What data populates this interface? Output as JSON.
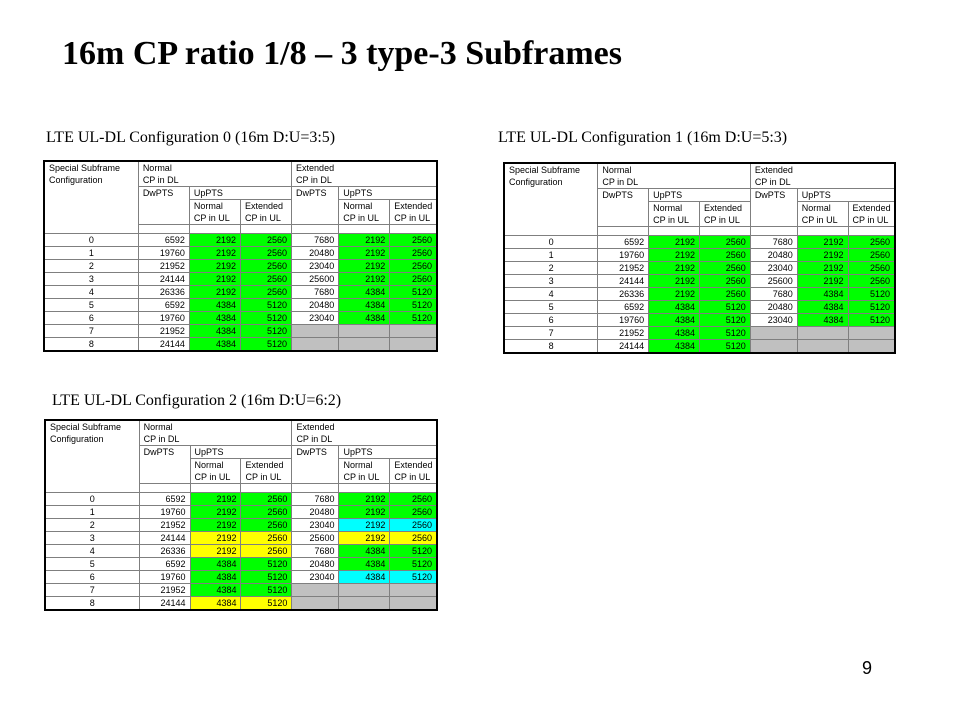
{
  "slide": {
    "title": "16m CP ratio 1/8 – 3 type-3 Subframes",
    "page_number": "9"
  },
  "headers": {
    "special_subframe": "Special Subframe",
    "configuration": "Configuration",
    "normal": "Normal",
    "extended": "Extended",
    "cp_in_dl": "CP in DL",
    "dwpts": "DwPTS",
    "uppts": "UpPTS",
    "normal_sub": "Normal",
    "extended_sub": "Extended",
    "cp_in_ul": "CP in UL"
  },
  "colors": {
    "green": "#00ff00",
    "yellow": "#ffff00",
    "cyan": "#00ffff",
    "gray": "#c0c0c0"
  },
  "tables": [
    {
      "title": "LTE UL-DL Configuration 0 (16m D:U=3:5)",
      "rows": [
        {
          "cells": [
            "0",
            "6592",
            "2192",
            "2560",
            "7680",
            "2192",
            "2560"
          ],
          "colors": [
            "",
            "",
            "green",
            "green",
            "",
            "green",
            "green"
          ]
        },
        {
          "cells": [
            "1",
            "19760",
            "2192",
            "2560",
            "20480",
            "2192",
            "2560"
          ],
          "colors": [
            "",
            "",
            "green",
            "green",
            "",
            "green",
            "green"
          ]
        },
        {
          "cells": [
            "2",
            "21952",
            "2192",
            "2560",
            "23040",
            "2192",
            "2560"
          ],
          "colors": [
            "",
            "",
            "green",
            "green",
            "",
            "green",
            "green"
          ]
        },
        {
          "cells": [
            "3",
            "24144",
            "2192",
            "2560",
            "25600",
            "2192",
            "2560"
          ],
          "colors": [
            "",
            "",
            "green",
            "green",
            "",
            "green",
            "green"
          ]
        },
        {
          "cells": [
            "4",
            "26336",
            "2192",
            "2560",
            "7680",
            "4384",
            "5120"
          ],
          "colors": [
            "",
            "",
            "green",
            "green",
            "",
            "green",
            "green"
          ]
        },
        {
          "cells": [
            "5",
            "6592",
            "4384",
            "5120",
            "20480",
            "4384",
            "5120"
          ],
          "colors": [
            "",
            "",
            "green",
            "green",
            "",
            "green",
            "green"
          ]
        },
        {
          "cells": [
            "6",
            "19760",
            "4384",
            "5120",
            "23040",
            "4384",
            "5120"
          ],
          "colors": [
            "",
            "",
            "green",
            "green",
            "",
            "green",
            "green"
          ]
        },
        {
          "cells": [
            "7",
            "21952",
            "4384",
            "5120",
            "",
            "",
            ""
          ],
          "colors": [
            "",
            "",
            "green",
            "green",
            "gray",
            "gray",
            "gray"
          ]
        },
        {
          "cells": [
            "8",
            "24144",
            "4384",
            "5120",
            "",
            "",
            ""
          ],
          "colors": [
            "",
            "",
            "green",
            "green",
            "gray",
            "gray",
            "gray"
          ]
        }
      ]
    },
    {
      "title": "LTE UL-DL Configuration 1 (16m D:U=5:3)",
      "rows": [
        {
          "cells": [
            "0",
            "6592",
            "2192",
            "2560",
            "7680",
            "2192",
            "2560"
          ],
          "colors": [
            "",
            "",
            "green",
            "green",
            "",
            "green",
            "green"
          ]
        },
        {
          "cells": [
            "1",
            "19760",
            "2192",
            "2560",
            "20480",
            "2192",
            "2560"
          ],
          "colors": [
            "",
            "",
            "green",
            "green",
            "",
            "green",
            "green"
          ]
        },
        {
          "cells": [
            "2",
            "21952",
            "2192",
            "2560",
            "23040",
            "2192",
            "2560"
          ],
          "colors": [
            "",
            "",
            "green",
            "green",
            "",
            "green",
            "green"
          ]
        },
        {
          "cells": [
            "3",
            "24144",
            "2192",
            "2560",
            "25600",
            "2192",
            "2560"
          ],
          "colors": [
            "",
            "",
            "green",
            "green",
            "",
            "green",
            "green"
          ]
        },
        {
          "cells": [
            "4",
            "26336",
            "2192",
            "2560",
            "7680",
            "4384",
            "5120"
          ],
          "colors": [
            "",
            "",
            "green",
            "green",
            "",
            "green",
            "green"
          ]
        },
        {
          "cells": [
            "5",
            "6592",
            "4384",
            "5120",
            "20480",
            "4384",
            "5120"
          ],
          "colors": [
            "",
            "",
            "green",
            "green",
            "",
            "green",
            "green"
          ]
        },
        {
          "cells": [
            "6",
            "19760",
            "4384",
            "5120",
            "23040",
            "4384",
            "5120"
          ],
          "colors": [
            "",
            "",
            "green",
            "green",
            "",
            "green",
            "green"
          ]
        },
        {
          "cells": [
            "7",
            "21952",
            "4384",
            "5120",
            "",
            "",
            ""
          ],
          "colors": [
            "",
            "",
            "green",
            "green",
            "gray",
            "gray",
            "gray"
          ]
        },
        {
          "cells": [
            "8",
            "24144",
            "4384",
            "5120",
            "",
            "",
            ""
          ],
          "colors": [
            "",
            "",
            "green",
            "green",
            "gray",
            "gray",
            "gray"
          ]
        }
      ]
    },
    {
      "title": "LTE UL-DL Configuration 2 (16m D:U=6:2)",
      "rows": [
        {
          "cells": [
            "0",
            "6592",
            "2192",
            "2560",
            "7680",
            "2192",
            "2560"
          ],
          "colors": [
            "",
            "",
            "green",
            "green",
            "",
            "green",
            "green"
          ]
        },
        {
          "cells": [
            "1",
            "19760",
            "2192",
            "2560",
            "20480",
            "2192",
            "2560"
          ],
          "colors": [
            "",
            "",
            "green",
            "green",
            "",
            "green",
            "green"
          ]
        },
        {
          "cells": [
            "2",
            "21952",
            "2192",
            "2560",
            "23040",
            "2192",
            "2560"
          ],
          "colors": [
            "",
            "",
            "green",
            "green",
            "",
            "cyan",
            "cyan"
          ]
        },
        {
          "cells": [
            "3",
            "24144",
            "2192",
            "2560",
            "25600",
            "2192",
            "2560"
          ],
          "colors": [
            "",
            "",
            "yellow",
            "yellow",
            "",
            "yellow",
            "yellow"
          ]
        },
        {
          "cells": [
            "4",
            "26336",
            "2192",
            "2560",
            "7680",
            "4384",
            "5120"
          ],
          "colors": [
            "",
            "",
            "yellow",
            "yellow",
            "",
            "green",
            "green"
          ]
        },
        {
          "cells": [
            "5",
            "6592",
            "4384",
            "5120",
            "20480",
            "4384",
            "5120"
          ],
          "colors": [
            "",
            "",
            "green",
            "green",
            "",
            "green",
            "green"
          ]
        },
        {
          "cells": [
            "6",
            "19760",
            "4384",
            "5120",
            "23040",
            "4384",
            "5120"
          ],
          "colors": [
            "",
            "",
            "green",
            "green",
            "",
            "cyan",
            "cyan"
          ]
        },
        {
          "cells": [
            "7",
            "21952",
            "4384",
            "5120",
            "",
            "",
            ""
          ],
          "colors": [
            "",
            "",
            "green",
            "green",
            "gray",
            "gray",
            "gray"
          ]
        },
        {
          "cells": [
            "8",
            "24144",
            "4384",
            "5120",
            "",
            "",
            ""
          ],
          "colors": [
            "",
            "",
            "yellow",
            "yellow",
            "gray",
            "gray",
            "gray"
          ]
        }
      ]
    }
  ]
}
